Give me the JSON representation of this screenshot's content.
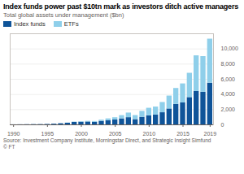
{
  "chart_data": {
    "type": "bar",
    "stacked": true,
    "title": "Index funds power past $10tn mark as investors ditch active managers",
    "subtitle": "Total global assets under management ($bn)",
    "source": "Source: Investment Company Institute, Morningstar Direct, and Strategic Insight Simfund",
    "credit": "© FT",
    "x": [
      1990,
      1991,
      1992,
      1993,
      1994,
      1995,
      1996,
      1997,
      1998,
      1999,
      2000,
      2001,
      2002,
      2003,
      2004,
      2005,
      2006,
      2007,
      2008,
      2009,
      2010,
      2011,
      2012,
      2013,
      2014,
      2015,
      2016,
      2017,
      2018,
      2019
    ],
    "series": [
      {
        "name": "Index funds",
        "color": "#0f5499",
        "values": [
          10,
          15,
          25,
          35,
          40,
          60,
          95,
          150,
          220,
          330,
          350,
          380,
          340,
          470,
          560,
          640,
          800,
          950,
          700,
          1000,
          1200,
          1300,
          1600,
          2100,
          2700,
          2900,
          3600,
          4400,
          4300,
          5500
        ]
      },
      {
        "name": "ETFs",
        "color": "#8fcfea",
        "values": [
          0,
          0,
          0,
          1,
          1,
          2,
          3,
          7,
          16,
          34,
          70,
          85,
          105,
          150,
          230,
          300,
          420,
          610,
          530,
          780,
          990,
          1050,
          1350,
          1700,
          2100,
          2500,
          3200,
          4700,
          4700,
          5800
        ]
      }
    ],
    "xlim": [
      1989.5,
      2019.5
    ],
    "xticks": [
      1990,
      1995,
      2000,
      2005,
      2010,
      2015,
      2019
    ],
    "ylim": [
      0,
      12000
    ],
    "yticks": [
      0,
      {
        "value": 2000,
        "label": "2,000"
      },
      {
        "value": 4000,
        "label": "4,000"
      },
      {
        "value": 6000,
        "label": "6,000"
      },
      {
        "value": 8000,
        "label": "8,000"
      },
      {
        "value": 10000,
        "label": "10,000"
      }
    ],
    "grid": true,
    "legend": "top-left"
  }
}
